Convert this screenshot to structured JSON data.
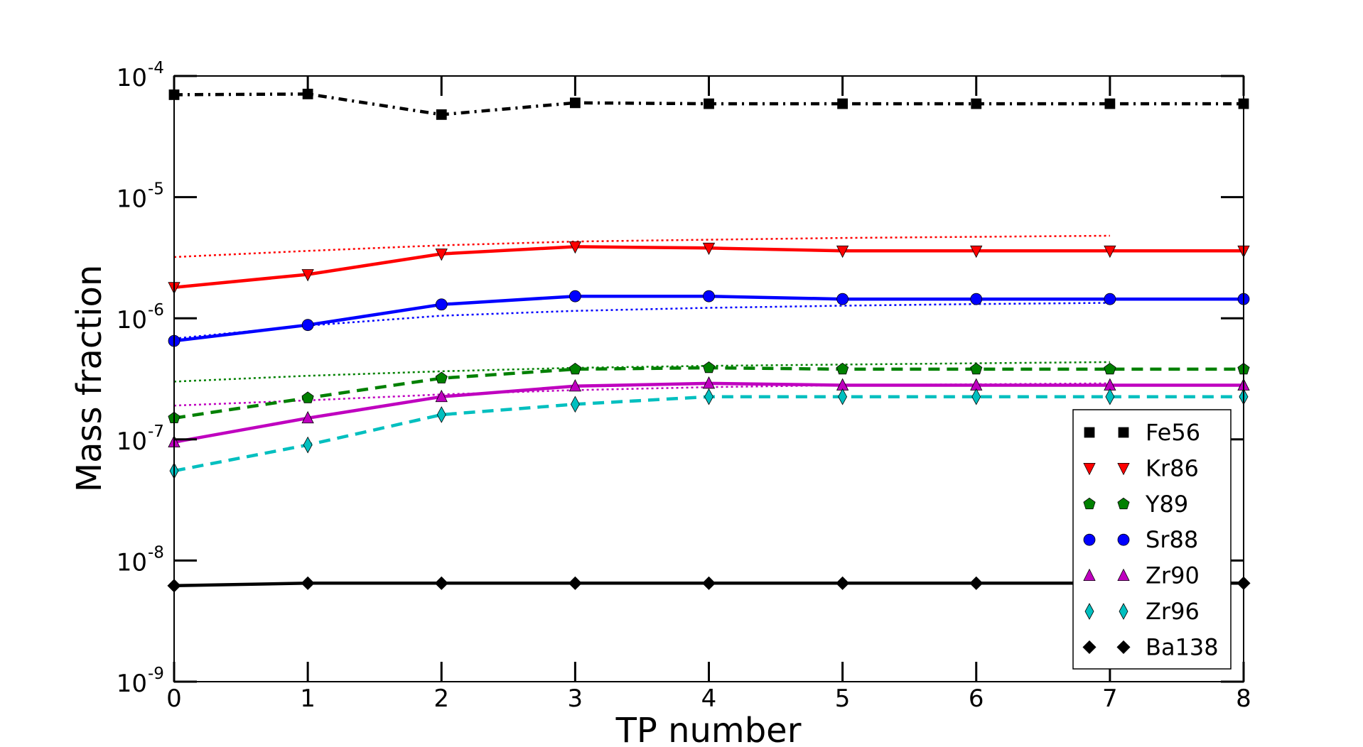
{
  "chart_data": {
    "type": "line",
    "xlabel": "TP number",
    "ylabel": "Mass fraction",
    "x": [
      0,
      1,
      2,
      3,
      4,
      5,
      6,
      7,
      8
    ],
    "xlim": [
      0,
      8
    ],
    "ylim": [
      1e-09,
      0.0001
    ],
    "yscale": "log",
    "x_ticks": [
      "0",
      "1",
      "2",
      "3",
      "4",
      "5",
      "6",
      "7",
      "8"
    ],
    "y_ticks": [
      {
        "base": "10",
        "exp": "-9",
        "value": 1e-09
      },
      {
        "base": "10",
        "exp": "-8",
        "value": 1e-08
      },
      {
        "base": "10",
        "exp": "-7",
        "value": 1e-07
      },
      {
        "base": "10",
        "exp": "-6",
        "value": 1e-06
      },
      {
        "base": "10",
        "exp": "-5",
        "value": 1e-05
      },
      {
        "base": "10",
        "exp": "-4",
        "value": 0.0001
      }
    ],
    "grid": false,
    "legend_position": "lower-right",
    "series": [
      {
        "name": "Fe56",
        "color": "#000000",
        "marker": "square",
        "dash": "dashdot",
        "values": [
          7e-05,
          7.1e-05,
          4.8e-05,
          6e-05,
          5.9e-05,
          5.9e-05,
          5.9e-05,
          5.9e-05,
          5.9e-05
        ]
      },
      {
        "name": "Kr86",
        "color": "#ff0000",
        "marker": "triangle-down",
        "dash": "solid",
        "values": [
          1.8e-06,
          2.3e-06,
          3.4e-06,
          3.9e-06,
          3.8e-06,
          3.6e-06,
          3.6e-06,
          3.6e-06,
          3.6e-06
        ]
      },
      {
        "name": "Y89",
        "color": "#008000",
        "marker": "pentagon",
        "dash": "dashed",
        "values": [
          1.5e-07,
          2.2e-07,
          3.2e-07,
          3.8e-07,
          3.9e-07,
          3.8e-07,
          3.8e-07,
          3.8e-07,
          3.8e-07
        ]
      },
      {
        "name": "Sr88",
        "color": "#0000ff",
        "marker": "circle",
        "dash": "solid",
        "values": [
          6.5e-07,
          8.8e-07,
          1.3e-06,
          1.52e-06,
          1.52e-06,
          1.44e-06,
          1.44e-06,
          1.44e-06,
          1.44e-06
        ]
      },
      {
        "name": "Zr90",
        "color": "#bf00bf",
        "marker": "triangle-up",
        "dash": "solid",
        "values": [
          9.5e-08,
          1.5e-07,
          2.25e-07,
          2.75e-07,
          2.9e-07,
          2.8e-07,
          2.8e-07,
          2.8e-07,
          2.8e-07
        ]
      },
      {
        "name": "Zr96",
        "color": "#00bfbf",
        "marker": "thin-diamond",
        "dash": "dashed",
        "values": [
          5.5e-08,
          9e-08,
          1.6e-07,
          1.95e-07,
          2.25e-07,
          2.25e-07,
          2.25e-07,
          2.25e-07,
          2.25e-07
        ]
      },
      {
        "name": "Ba138",
        "color": "#000000",
        "marker": "diamond",
        "dash": "solid",
        "values": [
          6.2e-09,
          6.5e-09,
          6.5e-09,
          6.5e-09,
          6.5e-09,
          6.5e-09,
          6.5e-09,
          6.5e-09,
          6.5e-09
        ]
      }
    ],
    "reference_lines": [
      {
        "color": "#ff0000",
        "dash": "dotted",
        "x": [
          0,
          1,
          2,
          3,
          4,
          5,
          6,
          7
        ],
        "values": [
          3.2e-06,
          3.6e-06,
          4e-06,
          4.3e-06,
          4.45e-06,
          4.6e-06,
          4.7e-06,
          4.8e-06
        ]
      },
      {
        "color": "#0000ff",
        "dash": "dotted",
        "x": [
          0,
          1,
          2,
          3,
          4,
          5,
          6,
          7
        ],
        "values": [
          6.8e-07,
          8.7e-07,
          1.05e-06,
          1.15e-06,
          1.22e-06,
          1.27e-06,
          1.31e-06,
          1.34e-06
        ]
      },
      {
        "color": "#008000",
        "dash": "dotted",
        "x": [
          0,
          1,
          2,
          3,
          4,
          5,
          6,
          7
        ],
        "values": [
          3e-07,
          3.35e-07,
          3.65e-07,
          3.9e-07,
          4.05e-07,
          4.15e-07,
          4.25e-07,
          4.35e-07
        ]
      },
      {
        "color": "#bf00bf",
        "dash": "dotted",
        "x": [
          0,
          1,
          2,
          3,
          4,
          5,
          6,
          7
        ],
        "values": [
          1.9e-07,
          2.1e-07,
          2.35e-07,
          2.55e-07,
          2.7e-07,
          2.8e-07,
          2.85e-07,
          2.9e-07
        ]
      }
    ]
  }
}
